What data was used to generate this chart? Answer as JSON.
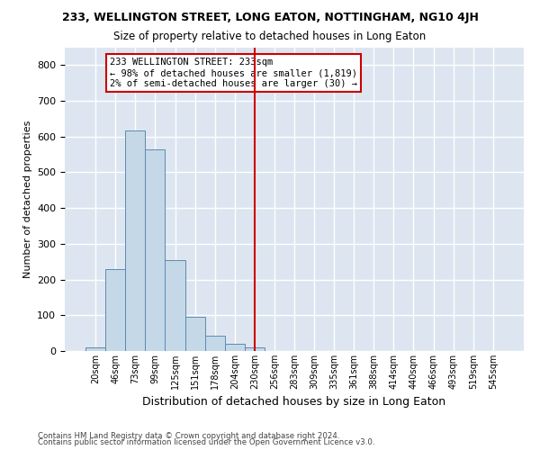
{
  "title": "233, WELLINGTON STREET, LONG EATON, NOTTINGHAM, NG10 4JH",
  "subtitle": "Size of property relative to detached houses in Long Eaton",
  "xlabel": "Distribution of detached houses by size in Long Eaton",
  "ylabel": "Number of detached properties",
  "bar_values": [
    10,
    230,
    618,
    565,
    255,
    96,
    43,
    20,
    10,
    0,
    0,
    0,
    0,
    0,
    0,
    0,
    0,
    0,
    0,
    0,
    0
  ],
  "categories": [
    "20sqm",
    "46sqm",
    "73sqm",
    "99sqm",
    "125sqm",
    "151sqm",
    "178sqm",
    "204sqm",
    "230sqm",
    "256sqm",
    "283sqm",
    "309sqm",
    "335sqm",
    "361sqm",
    "388sqm",
    "414sqm",
    "440sqm",
    "466sqm",
    "493sqm",
    "519sqm",
    "545sqm"
  ],
  "bar_color": "#c5d8e8",
  "bar_edge_color": "#5b8ab0",
  "vline_color": "#cc0000",
  "vline_x": 8.5,
  "annotation_text": "233 WELLINGTON STREET: 233sqm\n← 98% of detached houses are smaller (1,819)\n2% of semi-detached houses are larger (30) →",
  "annotation_box_edgecolor": "#cc0000",
  "ylim": [
    0,
    850
  ],
  "yticks": [
    0,
    100,
    200,
    300,
    400,
    500,
    600,
    700,
    800
  ],
  "background_color": "#dde6f0",
  "grid_color": "#ffffff",
  "footer_line1": "Contains HM Land Registry data © Crown copyright and database right 2024.",
  "footer_line2": "Contains public sector information licensed under the Open Government Licence v3.0."
}
